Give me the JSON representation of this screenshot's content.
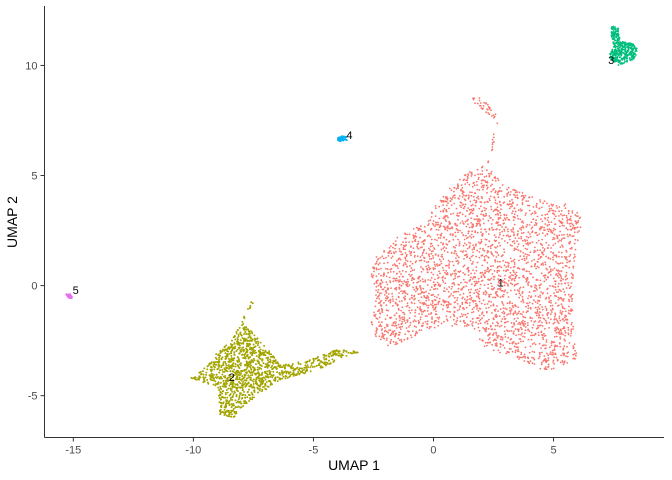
{
  "chart_data": {
    "type": "scatter",
    "title": "",
    "xlabel": "UMAP 1",
    "ylabel": "UMAP 2",
    "xlim": [
      -16.2,
      9.6
    ],
    "ylim": [
      -6.9,
      12.7
    ],
    "xticks": [
      -15,
      -10,
      -5,
      0,
      5
    ],
    "yticks": [
      -5,
      0,
      5,
      10
    ],
    "xtick_labels": [
      "-15",
      "-10",
      "-5",
      "0",
      "5"
    ],
    "ytick_labels": [
      "-5",
      "0",
      "5",
      "10"
    ],
    "grid": false,
    "legend": "none",
    "series": [
      {
        "name": "1",
        "color": "#F8766D",
        "label_position": [
          2.8,
          0.1
        ],
        "approx_points": 5200,
        "outline": [
          [
            1.5,
            5.2
          ],
          [
            2.2,
            5.5
          ],
          [
            2.5,
            6.3
          ],
          [
            2.7,
            7.4
          ],
          [
            1.6,
            8.4
          ],
          [
            1.5,
            8.7
          ],
          [
            2.0,
            8.5
          ],
          [
            2.6,
            7.9
          ],
          [
            2.3,
            5.3
          ],
          [
            3.1,
            4.5
          ],
          [
            4.2,
            4.0
          ],
          [
            5.5,
            3.7
          ],
          [
            6.0,
            3.4
          ],
          [
            6.2,
            3.0
          ],
          [
            5.9,
            1.5
          ],
          [
            5.8,
            -1.3
          ],
          [
            6.0,
            -3.2
          ],
          [
            5.8,
            -3.5
          ],
          [
            4.6,
            -3.9
          ],
          [
            3.5,
            -3.3
          ],
          [
            2.1,
            -2.8
          ],
          [
            1.7,
            -2.0
          ],
          [
            0.8,
            -1.9
          ],
          [
            0.3,
            -1.8
          ],
          [
            -0.6,
            -2.2
          ],
          [
            -1.8,
            -2.8
          ],
          [
            -2.4,
            -2.5
          ],
          [
            -2.6,
            -1.6
          ],
          [
            -2.4,
            -0.8
          ],
          [
            -2.6,
            0.6
          ],
          [
            -2.5,
            1.2
          ],
          [
            -2.2,
            1.5
          ],
          [
            -1.2,
            2.5
          ],
          [
            -0.3,
            2.8
          ],
          [
            0.0,
            3.5
          ],
          [
            0.8,
            4.6
          ]
        ]
      },
      {
        "name": "2",
        "color": "#A3A500",
        "label_position": [
          -8.4,
          -4.2
        ],
        "approx_points": 2600,
        "outline": [
          [
            -7.4,
            -0.3
          ],
          [
            -7.7,
            -1.0
          ],
          [
            -8.4,
            -2.5
          ],
          [
            -9.1,
            -3.1
          ],
          [
            -9.6,
            -3.8
          ],
          [
            -10.1,
            -4.2
          ],
          [
            -9.0,
            -4.6
          ],
          [
            -8.9,
            -5.9
          ],
          [
            -8.3,
            -6.0
          ],
          [
            -7.6,
            -5.2
          ],
          [
            -6.4,
            -4.3
          ],
          [
            -5.0,
            -3.9
          ],
          [
            -3.8,
            -3.3
          ],
          [
            -3.0,
            -3.0
          ],
          [
            -4.0,
            -2.9
          ],
          [
            -5.2,
            -3.4
          ],
          [
            -6.4,
            -3.6
          ],
          [
            -7.0,
            -2.7
          ],
          [
            -7.5,
            -2.2
          ],
          [
            -7.9,
            -1.6
          ],
          [
            -7.5,
            -0.8
          ]
        ]
      },
      {
        "name": "3",
        "color": "#00BF7D",
        "label_position": [
          7.4,
          10.2
        ],
        "approx_points": 450,
        "outline": [
          [
            7.4,
            11.8
          ],
          [
            7.7,
            11.7
          ],
          [
            7.8,
            11.1
          ],
          [
            8.3,
            11.0
          ],
          [
            8.5,
            10.8
          ],
          [
            8.4,
            10.3
          ],
          [
            7.7,
            10.0
          ],
          [
            7.3,
            10.4
          ],
          [
            7.5,
            10.9
          ],
          [
            7.4,
            11.4
          ]
        ]
      },
      {
        "name": "4",
        "color": "#00B0F6",
        "label_position": [
          -3.5,
          6.8
        ],
        "approx_points": 60,
        "outline": [
          [
            -4.0,
            6.7
          ],
          [
            -3.8,
            6.8
          ],
          [
            -3.6,
            6.75
          ],
          [
            -3.6,
            6.6
          ],
          [
            -3.9,
            6.55
          ],
          [
            -4.0,
            6.6
          ]
        ]
      },
      {
        "name": "5",
        "color": "#E76BF3",
        "label_position": [
          -14.9,
          -0.25
        ],
        "approx_points": 25,
        "outline": [
          [
            -15.3,
            -0.35
          ],
          [
            -15.15,
            -0.35
          ],
          [
            -15.0,
            -0.55
          ],
          [
            -15.15,
            -0.6
          ],
          [
            -15.3,
            -0.45
          ]
        ]
      }
    ]
  }
}
